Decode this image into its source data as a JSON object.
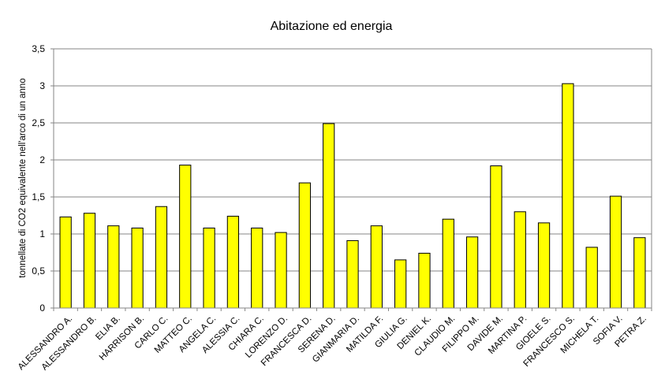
{
  "chart_data": {
    "type": "bar",
    "title": "Abitazione ed energia",
    "xlabel": "",
    "ylabel": "tonnellate di CO2 equivalente nell'arco di un anno",
    "ylim": [
      0,
      3.5
    ],
    "yticks": [
      "0",
      "0,5",
      "1",
      "1,5",
      "2",
      "2,5",
      "3",
      "3,5"
    ],
    "ytick_values": [
      0,
      0.5,
      1,
      1.5,
      2,
      2.5,
      3,
      3.5
    ],
    "grid": true,
    "legend": "none",
    "bar_color": "#ffff00",
    "bar_edge_color": "#000000",
    "categories": [
      "ALESSANDRO A.",
      "ALESSANDRO B.",
      "ELIA B.",
      "HARRISON B.",
      "CARLO C.",
      "MATTEO C.",
      "ANGELA C.",
      "ALESSIA C.",
      "CHIARA C.",
      "LORENZO D.",
      "FRANCESCA D.",
      "SERENA D.",
      "GIANMARIA D.",
      "MATILDA F.",
      "GIULIA G.",
      "DENIEL K.",
      "CLAUDIO M.",
      "FILIPPO M.",
      "DAVIDE M.",
      "MARTINA P.",
      "GIOELE S.",
      "FRANCESCO S.",
      "MICHELA T.",
      "SOFIA V.",
      "PETRA Z."
    ],
    "values": [
      1.23,
      1.28,
      1.11,
      1.08,
      1.37,
      1.93,
      1.08,
      1.24,
      1.08,
      1.02,
      1.69,
      2.49,
      0.91,
      1.11,
      0.65,
      0.74,
      1.2,
      0.96,
      1.92,
      1.3,
      1.15,
      3.03,
      0.82,
      1.51,
      0.95
    ]
  }
}
